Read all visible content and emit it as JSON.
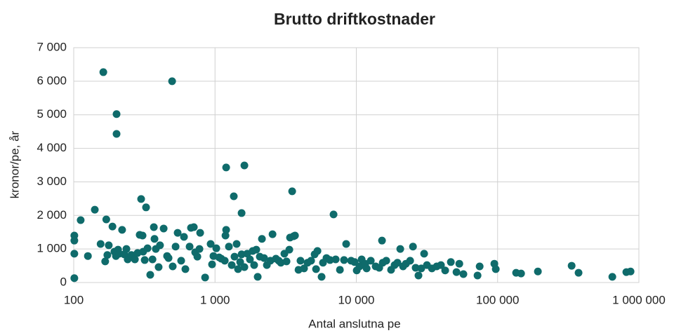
{
  "chart_data": {
    "type": "scatter",
    "title": "Brutto driftkostnader",
    "x_label": "Antal anslutna pe",
    "y_label": "kronor/pe, år",
    "color": "#0f6b6b",
    "xscale": "log",
    "grid": true,
    "xlim": [
      100,
      1000000
    ],
    "xticks": [
      100,
      {
        "value": 1000,
        "label": "1 000"
      },
      {
        "value": 10000,
        "label": "10 000"
      },
      {
        "value": 100000,
        "label": "100 000"
      },
      {
        "value": 1000000,
        "label": "1 000 000"
      }
    ],
    "ylim": [
      0,
      7000
    ],
    "yticks": [
      0,
      {
        "value": 1000,
        "label": "1 000"
      },
      {
        "value": 2000,
        "label": "2 000"
      },
      {
        "value": 3000,
        "label": "3 000"
      },
      {
        "value": 4000,
        "label": "4 000"
      },
      {
        "value": 5000,
        "label": "5 000"
      },
      {
        "value": 6000,
        "label": "6 000"
      },
      {
        "value": 7000,
        "label": "7 000"
      }
    ],
    "x": [
      101,
      101,
      101,
      101,
      112,
      126,
      141,
      155,
      162,
      167,
      170,
      173,
      177,
      188,
      194,
      199,
      201,
      201,
      206,
      210,
      220,
      228,
      236,
      241,
      256,
      271,
      283,
      293,
      300,
      307,
      310,
      318,
      325,
      333,
      348,
      361,
      369,
      373,
      381,
      399,
      408,
      433,
      458,
      469,
      497,
      502,
      526,
      544,
      576,
      603,
      617,
      661,
      676,
      708,
      724,
      750,
      776,
      785,
      851,
      931,
      953,
      975,
      1021,
      1069,
      1107,
      1172,
      1186,
      1199,
      1199,
      1254,
      1313,
      1358,
      1374,
      1422,
      1455,
      1507,
      1542,
      1542,
      1614,
      1614,
      1690,
      1766,
      1849,
      1892,
      1959,
      2005,
      2075,
      2148,
      2223,
      2328,
      2466,
      2553,
      2698,
      2825,
      2924,
      3097,
      3206,
      3357,
      3396,
      3516,
      3597,
      3681,
      3899,
      4027,
      4266,
      4519,
      4786,
      5070,
      5188,
      5309,
      5679,
      5810,
      6152,
      6516,
      6902,
      7145,
      7656,
      8188,
      8476,
      9185,
      9727,
      10070,
      10540,
      10910,
      11300,
      11560,
      11830,
      12660,
      13710,
      14530,
      15200,
      15380,
      16290,
      17620,
      18660,
      19550,
      20470,
      21430,
      22440,
      24040,
      25180,
      26300,
      27540,
      28840,
      30200,
      31620,
      34280,
      37070,
      39720,
      42560,
      46670,
      51170,
      53580,
      57280,
      72110,
      74650,
      94850,
      97060,
      135200,
      146600,
      192800,
      334200,
      374100,
      648600,
      814700,
      873000
    ],
    "values": [
      1400,
      1250,
      860,
      130,
      1860,
      790,
      2170,
      1150,
      6270,
      630,
      1880,
      820,
      1110,
      1670,
      920,
      790,
      5020,
      4430,
      980,
      860,
      1570,
      840,
      1000,
      690,
      820,
      690,
      880,
      1420,
      2490,
      1400,
      920,
      670,
      2240,
      1020,
      230,
      690,
      1650,
      1300,
      1000,
      460,
      1110,
      1610,
      790,
      730,
      6000,
      480,
      1070,
      1480,
      650,
      1360,
      400,
      1070,
      1630,
      1650,
      900,
      770,
      1000,
      1480,
      150,
      1150,
      540,
      790,
      1020,
      750,
      710,
      650,
      1400,
      1570,
      3430,
      1070,
      520,
      2570,
      770,
      1150,
      400,
      610,
      2070,
      840,
      3490,
      460,
      860,
      690,
      940,
      520,
      980,
      170,
      770,
      1300,
      730,
      520,
      650,
      1440,
      710,
      650,
      590,
      860,
      630,
      980,
      1340,
      2720,
      1380,
      1400,
      380,
      650,
      420,
      590,
      650,
      840,
      400,
      940,
      170,
      590,
      730,
      670,
      2030,
      690,
      380,
      670,
      1150,
      650,
      610,
      360,
      480,
      690,
      520,
      560,
      420,
      650,
      480,
      440,
      1250,
      590,
      650,
      380,
      520,
      590,
      1000,
      480,
      560,
      650,
      1070,
      440,
      210,
      420,
      860,
      520,
      420,
      480,
      520,
      360,
      610,
      310,
      560,
      250,
      210,
      480,
      560,
      400,
      290,
      270,
      330,
      500,
      290,
      170,
      310,
      330
    ]
  }
}
